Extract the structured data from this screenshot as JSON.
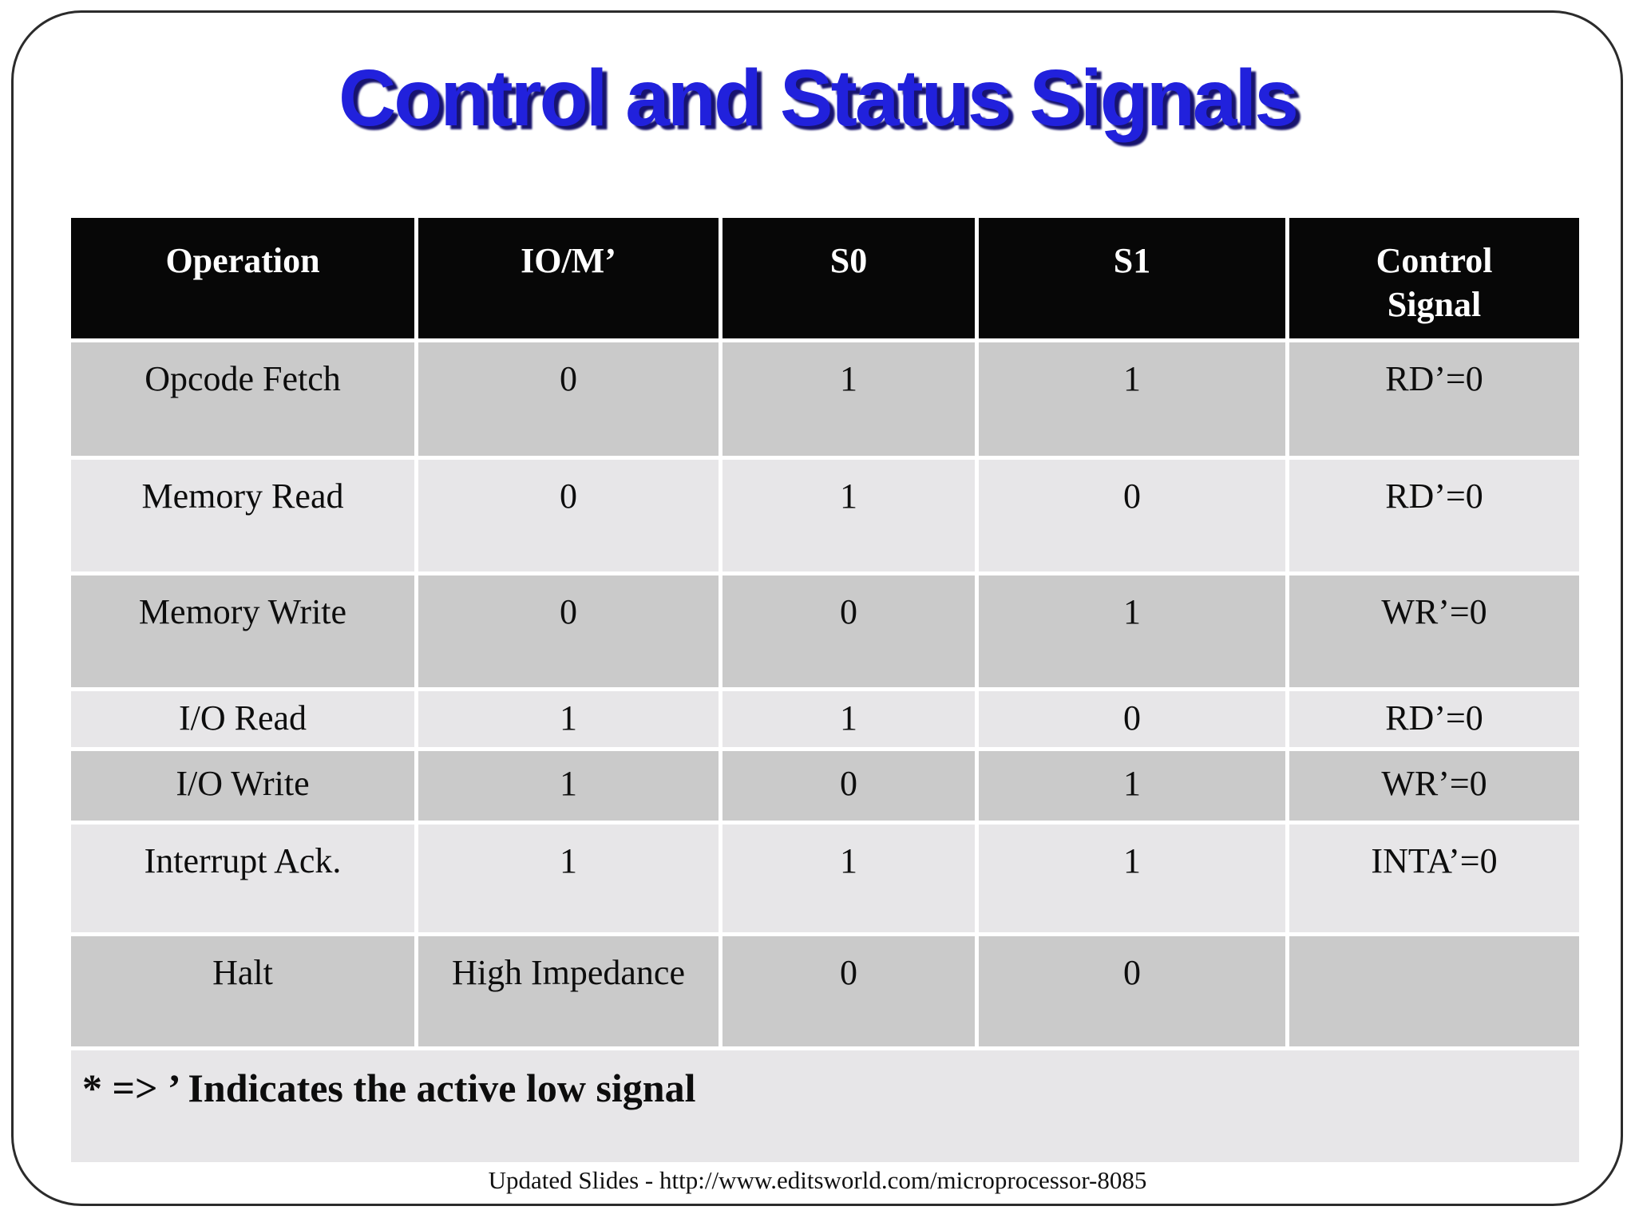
{
  "slide": {
    "title": "Control and Status Signals",
    "footnote": "* => ’ Indicates the active low signal",
    "credit": "Updated Slides - http://www.editsworld.com/microprocessor-8085"
  },
  "table": {
    "headers": [
      "Operation",
      "IO/M’",
      "S0",
      "S1",
      "Control Signal"
    ],
    "rows": [
      [
        "Opcode Fetch",
        "0",
        "1",
        "1",
        "RD’=0"
      ],
      [
        "Memory Read",
        "0",
        "1",
        "0",
        "RD’=0"
      ],
      [
        "Memory Write",
        "0",
        "0",
        "1",
        "WR’=0"
      ],
      [
        "I/O Read",
        "1",
        "1",
        "0",
        "RD’=0"
      ],
      [
        "I/O Write",
        "1",
        "0",
        "1",
        "WR’=0"
      ],
      [
        "Interrupt Ack.",
        "1",
        "1",
        "1",
        "INTA’=0"
      ],
      [
        "Halt",
        "High Impedance",
        "0",
        "0",
        ""
      ]
    ]
  },
  "colors": {
    "title_blue": "#2121dc",
    "title_shadow": "#17136e",
    "header_bg": "#070707",
    "header_text": "#ffffff",
    "row_dark": "#cacaca",
    "row_light": "#e7e6e8",
    "slide_border": "#2b2b2b"
  }
}
